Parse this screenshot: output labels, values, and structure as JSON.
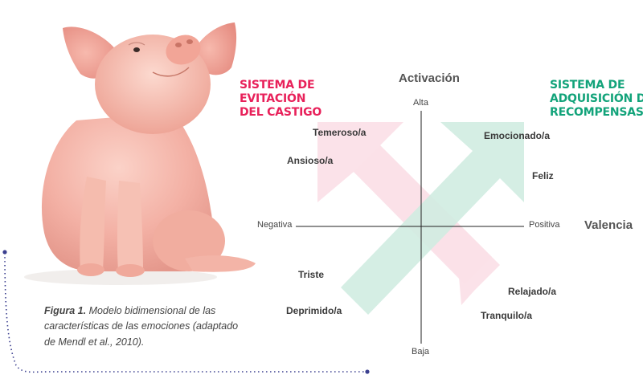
{
  "figure": {
    "caption_label": "Figura 1.",
    "caption_text": " Modelo bidimensional de las características de las emociones (adaptado de Mendl et al., 2010)."
  },
  "diagram": {
    "axis_y_title": "Activación",
    "axis_x_title": "Valencia",
    "axis_top": "Alta",
    "axis_bottom": "Baja",
    "axis_left": "Negativa",
    "axis_right": "Positiva",
    "system_punishment": [
      "SISTEMA DE",
      "EVITACIÓN",
      "DEL CASTIGO"
    ],
    "system_reward": [
      "SISTEMA DE",
      "ADQUISICIÓN DE",
      "RECOMPENSAS"
    ],
    "emotions": {
      "fearful": "Temeroso/a",
      "anxious": "Ansioso/a",
      "excited": "Emocionado/a",
      "happy": "Feliz",
      "sad": "Triste",
      "depressed": "Deprimido/a",
      "relaxed": "Relajado/a",
      "calm": "Tranquilo/a"
    },
    "colors": {
      "punishment_arrow": "#fbe0e8",
      "reward_arrow": "#d6efe6",
      "punishment_text": "#e8215a",
      "reward_text": "#12a37a",
      "dotted_line": "#3b3f8f"
    }
  },
  "illustration": {
    "subject": "pig-photo"
  }
}
